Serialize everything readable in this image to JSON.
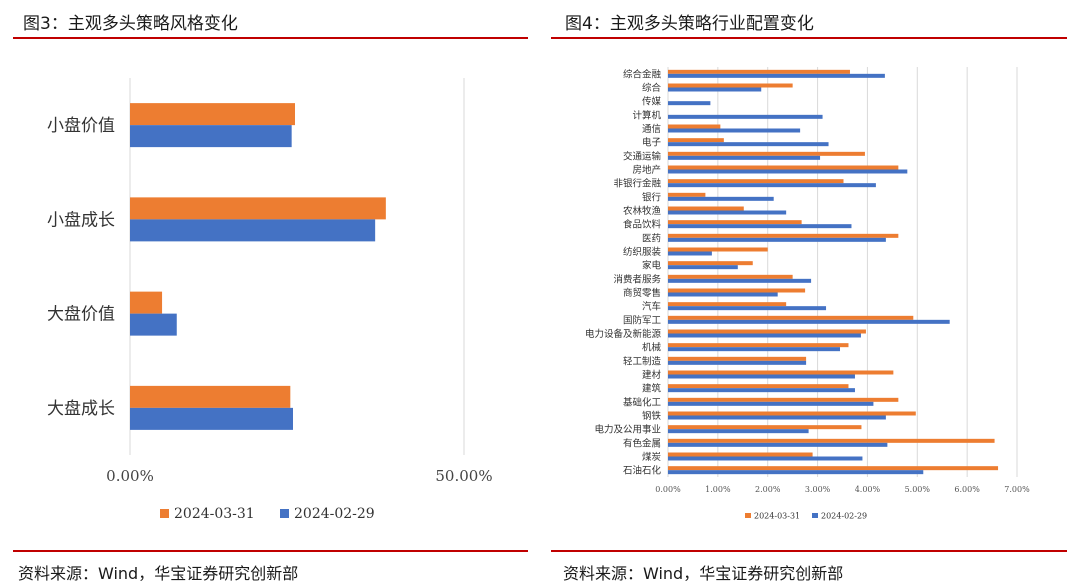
{
  "figures": [
    {
      "title": "图3：主观多头策略风格变化",
      "source": "资料来源：Wind，华宝证券研究创新部"
    },
    {
      "title": "图4：主观多头策略行业配置变化",
      "source": "资料来源：Wind，华宝证券研究创新部"
    }
  ],
  "colors": {
    "series_2024_03_31": "#ed7d31",
    "series_2024_02_29": "#4472c4",
    "rule": "#c00000",
    "gridline": "#d9d9d9"
  },
  "chart_data": [
    {
      "type": "bar",
      "orientation": "horizontal",
      "categories": [
        "小盘价值",
        "小盘成长",
        "大盘价值",
        "大盘成长"
      ],
      "series": [
        {
          "name": "2024-03-31",
          "values": [
            24.7,
            38.3,
            4.8,
            24.0
          ]
        },
        {
          "name": "2024-02-29",
          "values": [
            24.2,
            36.7,
            7.0,
            24.4
          ]
        }
      ],
      "x_ticks": [
        "0.00%",
        "50.00%"
      ],
      "xlim": [
        0,
        50
      ],
      "grid": true,
      "legend_position": "bottom"
    },
    {
      "type": "bar",
      "orientation": "horizontal",
      "categories": [
        "综合金融",
        "综合",
        "传媒",
        "计算机",
        "通信",
        "电子",
        "交通运输",
        "房地产",
        "非银行金融",
        "银行",
        "农林牧渔",
        "食品饮料",
        "医药",
        "纺织服装",
        "家电",
        "消费者服务",
        "商贸零售",
        "汽车",
        "国防军工",
        "电力设备及新能源",
        "机械",
        "轻工制造",
        "建材",
        "建筑",
        "基础化工",
        "钢铁",
        "电力及公用事业",
        "有色金属",
        "煤炭",
        "石油石化"
      ],
      "series": [
        {
          "name": "2024-03-31",
          "values": [
            3.65,
            2.5,
            0.0,
            0.0,
            1.05,
            1.12,
            3.95,
            4.62,
            3.52,
            0.75,
            1.52,
            2.68,
            4.62,
            2.0,
            1.7,
            2.5,
            2.75,
            2.37,
            4.92,
            3.97,
            3.62,
            2.77,
            4.52,
            3.62,
            4.62,
            4.97,
            3.88,
            6.55,
            2.9,
            6.62
          ]
        },
        {
          "name": "2024-02-29",
          "values": [
            4.35,
            1.87,
            0.85,
            3.1,
            2.65,
            3.22,
            3.05,
            4.8,
            4.17,
            2.12,
            2.37,
            3.68,
            4.37,
            0.88,
            1.4,
            2.87,
            2.2,
            3.17,
            5.65,
            3.87,
            3.45,
            2.77,
            3.75,
            3.75,
            4.12,
            4.37,
            2.82,
            4.4,
            3.9,
            5.12
          ]
        }
      ],
      "x_ticks": [
        "0.00%",
        "1.00%",
        "2.00%",
        "3.00%",
        "4.00%",
        "5.00%",
        "6.00%",
        "7.00%"
      ],
      "xlim": [
        0,
        7
      ],
      "grid": true,
      "legend_position": "bottom"
    }
  ]
}
